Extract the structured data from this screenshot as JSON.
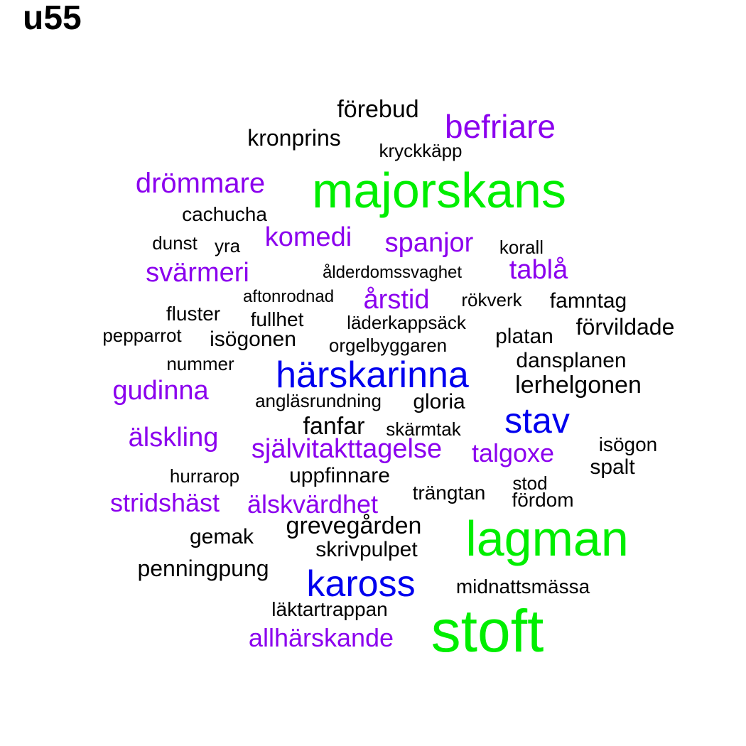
{
  "title": "u55",
  "colors": {
    "black": "#000000",
    "purple": "#8b00ee",
    "blue": "#0000ee",
    "green": "#00ee00"
  },
  "words": [
    {
      "text": "majorskans",
      "color": "green"
    },
    {
      "text": "lagman",
      "color": "green"
    },
    {
      "text": "stoft",
      "color": "green"
    },
    {
      "text": "härskarinna",
      "color": "blue"
    },
    {
      "text": "stav",
      "color": "blue"
    },
    {
      "text": "kaross",
      "color": "blue"
    },
    {
      "text": "befriare",
      "color": "purple"
    },
    {
      "text": "drömmare",
      "color": "purple"
    },
    {
      "text": "komedi",
      "color": "purple"
    },
    {
      "text": "spanjor",
      "color": "purple"
    },
    {
      "text": "tablå",
      "color": "purple"
    },
    {
      "text": "svärmeri",
      "color": "purple"
    },
    {
      "text": "årstid",
      "color": "purple"
    },
    {
      "text": "gudinna",
      "color": "purple"
    },
    {
      "text": "älskling",
      "color": "purple"
    },
    {
      "text": "självitakttagelse",
      "color": "purple"
    },
    {
      "text": "talgoxe",
      "color": "purple"
    },
    {
      "text": "stridshäst",
      "color": "purple"
    },
    {
      "text": "älskvärdhet",
      "color": "purple"
    },
    {
      "text": "allhärskande",
      "color": "purple"
    },
    {
      "text": "förebud",
      "color": "black"
    },
    {
      "text": "kronprins",
      "color": "black"
    },
    {
      "text": "kryckkäpp",
      "color": "black"
    },
    {
      "text": "cachucha",
      "color": "black"
    },
    {
      "text": "dunst",
      "color": "black"
    },
    {
      "text": "yra",
      "color": "black"
    },
    {
      "text": "korall",
      "color": "black"
    },
    {
      "text": "ålderdomssvaghet",
      "color": "black"
    },
    {
      "text": "aftonrodnad",
      "color": "black"
    },
    {
      "text": "rökverk",
      "color": "black"
    },
    {
      "text": "famntag",
      "color": "black"
    },
    {
      "text": "fluster",
      "color": "black"
    },
    {
      "text": "fullhet",
      "color": "black"
    },
    {
      "text": "läderkappsäck",
      "color": "black"
    },
    {
      "text": "förvildade",
      "color": "black"
    },
    {
      "text": "pepparrot",
      "color": "black"
    },
    {
      "text": "isögonen",
      "color": "black"
    },
    {
      "text": "platan",
      "color": "black"
    },
    {
      "text": "orgelbyggaren",
      "color": "black"
    },
    {
      "text": "nummer",
      "color": "black"
    },
    {
      "text": "dansplanen",
      "color": "black"
    },
    {
      "text": "lerhelgonen",
      "color": "black"
    },
    {
      "text": "angläsrundning",
      "color": "black"
    },
    {
      "text": "gloria",
      "color": "black"
    },
    {
      "text": "fanfar",
      "color": "black"
    },
    {
      "text": "skärmtak",
      "color": "black"
    },
    {
      "text": "isögon",
      "color": "black"
    },
    {
      "text": "spalt",
      "color": "black"
    },
    {
      "text": "hurrarop",
      "color": "black"
    },
    {
      "text": "uppfinnare",
      "color": "black"
    },
    {
      "text": "stod",
      "color": "black"
    },
    {
      "text": "trängtan",
      "color": "black"
    },
    {
      "text": "fördom",
      "color": "black"
    },
    {
      "text": "grevegården",
      "color": "black"
    },
    {
      "text": "gemak",
      "color": "black"
    },
    {
      "text": "skrivpulpet",
      "color": "black"
    },
    {
      "text": "penningpung",
      "color": "black"
    },
    {
      "text": "midnattsmässa",
      "color": "black"
    },
    {
      "text": "läktartrappan",
      "color": "black"
    }
  ]
}
